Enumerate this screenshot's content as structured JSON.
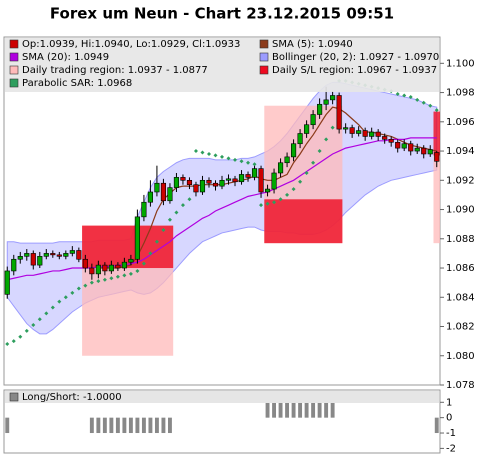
{
  "chart_data": [
    {
      "type": "candlestick",
      "title": "Forex um Neun - Chart 23.12.2015 09:51",
      "categories": [
        null,
        null,
        null,
        null,
        null,
        null,
        null,
        null,
        null,
        null,
        null,
        null,
        null,
        null,
        null,
        null,
        null,
        null,
        null,
        null,
        null,
        null,
        null,
        null,
        null,
        null,
        null,
        null,
        null,
        null,
        null,
        null,
        null,
        null,
        null,
        null,
        null,
        null,
        null,
        null,
        null,
        null,
        null,
        null,
        null,
        null,
        null,
        null,
        null,
        null,
        null,
        null,
        null,
        null,
        null,
        null,
        null,
        null,
        null,
        null,
        null,
        null,
        null,
        null,
        null,
        null,
        null
      ],
      "candles": {
        "name": "Op:1.0939, Hi:1.0940, Lo:1.0929, Cl:1.0933",
        "color": "#cc0000",
        "up_color": "#00a800",
        "open": [
          1.0842,
          1.0858,
          1.0866,
          1.0868,
          1.087,
          1.0862,
          1.0868,
          1.087,
          1.0869,
          1.0868,
          1.087,
          1.0872,
          1.0866,
          1.086,
          1.0856,
          1.0862,
          1.0858,
          1.0862,
          1.086,
          1.0864,
          1.0866,
          1.0895,
          1.0905,
          1.0912,
          1.0918,
          1.0906,
          1.0915,
          1.0922,
          1.092,
          1.0917,
          1.0912,
          1.092,
          1.0918,
          1.0916,
          1.092,
          1.0921,
          1.0919,
          1.0924,
          1.0922,
          1.0928,
          1.0912,
          1.0914,
          1.0925,
          1.0932,
          1.0936,
          1.0945,
          1.0952,
          1.0958,
          1.0965,
          1.0972,
          1.0975,
          1.0978,
          1.0955,
          1.0956,
          1.0952,
          1.0954,
          1.095,
          1.0953,
          1.095,
          1.0948,
          1.0946,
          1.0942,
          1.0945,
          1.094,
          1.0942,
          1.0938,
          1.0939
        ],
        "high": [
          1.0861,
          1.0869,
          1.0871,
          1.0873,
          1.0872,
          1.0871,
          1.0873,
          1.0872,
          1.0871,
          1.0872,
          1.0875,
          1.0874,
          1.0869,
          1.0863,
          1.0865,
          1.0864,
          1.0865,
          1.0864,
          1.0867,
          1.0869,
          1.09,
          1.091,
          1.092,
          1.093,
          1.0921,
          1.0918,
          1.0925,
          1.0924,
          1.0922,
          1.0919,
          1.0923,
          1.0922,
          1.092,
          1.0923,
          1.0924,
          1.0923,
          1.0927,
          1.0926,
          1.0931,
          1.093,
          1.0917,
          1.0928,
          1.0935,
          1.0939,
          1.0948,
          1.0955,
          1.0961,
          1.0968,
          1.0976,
          1.0984,
          1.0981,
          1.098,
          1.0959,
          1.0958,
          1.0957,
          1.0956,
          1.0956,
          1.0955,
          1.0952,
          1.095,
          1.0948,
          1.0948,
          1.0947,
          1.0945,
          1.0944,
          1.0944,
          1.094
        ],
        "low": [
          1.0839,
          1.0855,
          1.0863,
          1.0865,
          1.0859,
          1.086,
          1.0866,
          1.0867,
          1.0866,
          1.0866,
          1.0868,
          1.0864,
          1.0857,
          1.0852,
          1.0853,
          1.0855,
          1.0856,
          1.0858,
          1.0858,
          1.0862,
          1.0863,
          1.0892,
          1.0902,
          1.0909,
          1.0903,
          1.0904,
          1.0912,
          1.0917,
          1.0914,
          1.0909,
          1.091,
          1.0915,
          1.0913,
          1.0914,
          1.0917,
          1.0916,
          1.0917,
          1.0919,
          1.092,
          1.0908,
          1.0909,
          1.0911,
          1.0922,
          1.0929,
          1.0933,
          1.0942,
          1.0949,
          1.0955,
          1.0962,
          1.0968,
          1.0972,
          1.0952,
          1.0952,
          1.0949,
          1.095,
          1.0947,
          1.0948,
          1.0947,
          1.0945,
          1.0943,
          1.0939,
          1.094,
          1.0937,
          1.0938,
          1.0935,
          1.0936,
          1.0929
        ],
        "close": [
          1.0858,
          1.0866,
          1.0868,
          1.087,
          1.0862,
          1.0868,
          1.087,
          1.0869,
          1.0868,
          1.087,
          1.0872,
          1.0866,
          1.086,
          1.0856,
          1.0862,
          1.0858,
          1.0862,
          1.086,
          1.0864,
          1.0866,
          1.0895,
          1.0905,
          1.0912,
          1.0918,
          1.0906,
          1.0915,
          1.0922,
          1.092,
          1.0917,
          1.0912,
          1.092,
          1.0918,
          1.0916,
          1.092,
          1.0921,
          1.0919,
          1.0924,
          1.0922,
          1.0928,
          1.0912,
          1.0914,
          1.0925,
          1.0932,
          1.0936,
          1.0945,
          1.0952,
          1.0958,
          1.0965,
          1.0972,
          1.0975,
          1.0978,
          1.0955,
          1.0956,
          1.0952,
          1.0954,
          1.095,
          1.0953,
          1.095,
          1.0948,
          1.0946,
          1.0942,
          1.0945,
          1.094,
          1.0942,
          1.0938,
          1.0941,
          1.0933
        ]
      },
      "lines": [
        {
          "name": "SMA (5): 1.0940",
          "color": "#8b3a1a",
          "values": [
            null,
            null,
            null,
            null,
            null,
            null,
            null,
            null,
            null,
            null,
            null,
            null,
            null,
            null,
            1.086,
            1.086,
            1.086,
            1.086,
            1.0861,
            1.0862,
            1.0868,
            1.0877,
            1.0887,
            1.0899,
            1.0907,
            1.0911,
            1.0915,
            1.0916,
            1.0916,
            1.0916,
            1.0917,
            1.0917,
            1.0917,
            1.0917,
            1.0918,
            1.0919,
            1.092,
            1.0921,
            1.0923,
            1.0921,
            1.092,
            1.092,
            1.0922,
            1.0924,
            1.0932,
            1.0938,
            1.0945,
            1.0951,
            1.0958,
            1.0965,
            1.097,
            1.0969,
            1.0966,
            1.0962,
            1.0958,
            1.0953,
            1.0953,
            1.0952,
            1.0951,
            1.095,
            1.0948,
            1.0946,
            1.0944,
            1.0943,
            1.0942,
            1.0941,
            1.094
          ]
        },
        {
          "name": "SMA (20): 1.0949",
          "color": "#b000e0",
          "values": [
            1.0852,
            1.0853,
            1.0854,
            1.0855,
            1.0855,
            1.0856,
            1.0857,
            1.0858,
            1.0858,
            1.0859,
            1.086,
            1.086,
            1.086,
            1.086,
            1.0861,
            1.0861,
            1.0861,
            1.0862,
            1.0862,
            1.0863,
            1.0864,
            1.0866,
            1.0869,
            1.0872,
            1.0875,
            1.0878,
            1.0882,
            1.0885,
            1.0888,
            1.0891,
            1.0894,
            1.0896,
            1.0899,
            1.0901,
            1.0903,
            1.0905,
            1.0907,
            1.0909,
            1.091,
            1.0911,
            1.0912,
            1.0914,
            1.0916,
            1.0918,
            1.092,
            1.0923,
            1.0926,
            1.0929,
            1.0932,
            1.0935,
            1.0938,
            1.094,
            1.0942,
            1.0943,
            1.0944,
            1.0945,
            1.0946,
            1.0947,
            1.0947,
            1.0948,
            1.0948,
            1.0948,
            1.0949,
            1.0949,
            1.0949,
            1.0949,
            1.0949
          ]
        }
      ],
      "band": {
        "name": "Bollinger (20, 2): 1.0927 - 1.0970",
        "color": "#9c9cff",
        "upper": [
          1.0878,
          1.0878,
          1.0877,
          1.0877,
          1.0877,
          1.0877,
          1.0877,
          1.0877,
          1.0878,
          1.0878,
          1.0878,
          1.0878,
          1.0878,
          1.0878,
          1.0879,
          1.0879,
          1.0879,
          1.0879,
          1.0879,
          1.088,
          1.0895,
          1.0905,
          1.0915,
          1.0922,
          1.0926,
          1.0929,
          1.0932,
          1.0934,
          1.0935,
          1.0935,
          1.0935,
          1.0935,
          1.0934,
          1.0934,
          1.0934,
          1.0934,
          1.0935,
          1.0935,
          1.0936,
          1.0938,
          1.094,
          1.0943,
          1.0947,
          1.0952,
          1.0958,
          1.0964,
          1.097,
          1.0976,
          1.0981,
          1.0985,
          1.0987,
          1.0987,
          1.0986,
          1.0985,
          1.0984,
          1.0983,
          1.0982,
          1.0981,
          1.098,
          1.0979,
          1.0978,
          1.0977,
          1.0976,
          1.0975,
          1.0973,
          1.0971,
          1.097
        ],
        "lower": [
          1.084,
          1.0834,
          1.0828,
          1.0822,
          1.0818,
          1.0815,
          1.0815,
          1.0818,
          1.0822,
          1.0826,
          1.083,
          1.0833,
          1.0836,
          1.0838,
          1.084,
          1.0841,
          1.0842,
          1.0843,
          1.0844,
          1.0845,
          1.0843,
          1.0842,
          1.0843,
          1.0846,
          1.085,
          1.0855,
          1.086,
          1.0865,
          1.087,
          1.0874,
          1.0878,
          1.088,
          1.0882,
          1.0884,
          1.0885,
          1.0886,
          1.0887,
          1.0888,
          1.0888,
          1.0886,
          1.0885,
          1.0885,
          1.0885,
          1.0884,
          1.0884,
          1.0883,
          1.0883,
          1.0883,
          1.0884,
          1.0886,
          1.0889,
          1.0893,
          1.0898,
          1.0902,
          1.0906,
          1.091,
          1.0913,
          1.0916,
          1.0918,
          1.092,
          1.0921,
          1.0922,
          1.0923,
          1.0924,
          1.0925,
          1.0926,
          1.0927
        ]
      },
      "regions": [
        {
          "name": "Daily trading region: 1.0937 - 1.0877",
          "color": "#ffbaba",
          "spans": [
            {
              "from": 12,
              "to": 26,
              "high": 1.0889,
              "low": 1.08
            },
            {
              "from": 40,
              "to": 52,
              "high": 1.0971,
              "low": 1.0877
            },
            {
              "from": 66,
              "to": 67,
              "high": 1.0937,
              "low": 1.0877
            }
          ]
        },
        {
          "name": "Daily S/L region: 1.0967 - 1.0937",
          "color": "#ee0a20",
          "spans": [
            {
              "from": 12,
              "to": 26,
              "high": 1.0889,
              "low": 1.086
            },
            {
              "from": 40,
              "to": 52,
              "high": 1.0907,
              "low": 1.0877
            },
            {
              "from": 66,
              "to": 67,
              "high": 1.0967,
              "low": 1.0937
            }
          ]
        }
      ],
      "sar": {
        "name": "Parabolic SAR: 1.0968",
        "color": "#2e9e5e",
        "values": [
          1.0808,
          1.081,
          1.0813,
          1.0817,
          1.0821,
          1.0825,
          1.0829,
          1.0833,
          1.0837,
          1.084,
          1.0843,
          1.0846,
          1.0848,
          1.085,
          1.0851,
          1.0852,
          1.0853,
          1.0854,
          1.0855,
          1.0856,
          1.0858,
          1.0863,
          1.087,
          1.0878,
          1.0886,
          1.0893,
          1.0898,
          1.0903,
          1.0907,
          1.094,
          1.0939,
          1.0938,
          1.0937,
          1.0936,
          1.0935,
          1.0934,
          1.0933,
          1.0932,
          1.0931,
          1.0903,
          1.0904,
          1.0905,
          1.0907,
          1.091,
          1.0914,
          1.0919,
          1.0925,
          1.0932,
          1.094,
          1.0948,
          1.0956,
          1.0988,
          1.0988,
          1.0987,
          1.0986,
          1.0985,
          1.0984,
          1.0983,
          1.0982,
          1.0981,
          1.0979,
          1.0978,
          1.0977,
          1.0975,
          1.0973,
          1.0971,
          1.0968
        ]
      },
      "ylim": [
        1.078,
        1.1018
      ],
      "yticks": [
        {
          "value": 1.08,
          "label": "1.080"
        },
        1.078,
        1.082,
        1.084,
        1.086,
        1.088,
        {
          "value": 1.09,
          "label": "1.090"
        },
        1.092,
        1.094,
        1.096,
        1.098,
        {
          "value": 1.1,
          "label": "1.100"
        }
      ]
    },
    {
      "type": "bar",
      "categories": [
        null,
        null,
        null,
        null,
        null,
        null,
        null,
        null,
        null,
        null,
        null,
        null,
        null,
        null,
        null,
        null,
        null,
        null,
        null,
        null,
        null,
        null,
        null,
        null,
        null,
        null,
        null,
        null,
        null,
        null,
        null,
        null,
        null,
        null,
        null,
        null,
        null,
        null,
        null,
        null,
        null,
        null,
        null,
        null,
        null,
        null,
        null,
        null,
        null,
        null,
        null,
        null,
        null,
        null,
        null,
        null,
        null,
        null,
        null,
        null,
        null,
        null,
        null,
        null,
        null,
        null,
        null
      ],
      "series": [
        {
          "name": "Long/Short: -1.0000",
          "color": "#888888",
          "values": [
            -1,
            0,
            0,
            0,
            0,
            0,
            0,
            0,
            0,
            0,
            0,
            0,
            0,
            -1,
            -1,
            -1,
            -1,
            -1,
            -1,
            -1,
            -1,
            -1,
            -1,
            -1,
            -1,
            -1,
            0,
            0,
            0,
            0,
            0,
            0,
            0,
            0,
            0,
            0,
            0,
            0,
            0,
            0,
            1,
            1,
            1,
            1,
            1,
            1,
            1,
            1,
            1,
            1,
            1,
            0,
            0,
            0,
            0,
            0,
            0,
            0,
            0,
            0,
            0,
            0,
            0,
            0,
            0,
            0,
            -1
          ]
        }
      ],
      "ylim": [
        -2.3,
        1.8
      ],
      "yticks": [
        1,
        0,
        -1,
        -2
      ]
    }
  ]
}
